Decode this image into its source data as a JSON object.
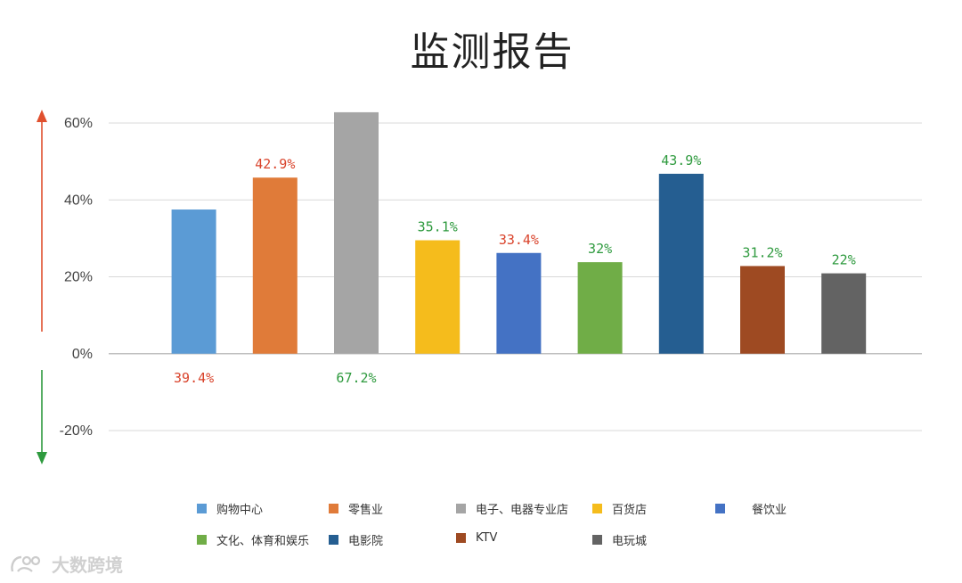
{
  "chart_data": {
    "type": "bar",
    "title": "监测报告",
    "categories": [
      "购物中心",
      "零售业",
      "电子、电器专业店",
      "百货店",
      "餐饮业",
      "文化、体育和娱乐",
      "电影院",
      "KTV",
      "电玩城"
    ],
    "values": [
      37.5,
      45.8,
      62.8,
      29.5,
      26.2,
      23.8,
      46.8,
      22.8,
      20.9
    ],
    "colors": [
      "#5b9bd5",
      "#e07b39",
      "#a5a5a5",
      "#f5bc1c",
      "#4472c4",
      "#70ad47",
      "#255e91",
      "#9e4a22",
      "#636363"
    ],
    "data_labels": [
      "39.4%",
      "42.9%",
      "67.2%",
      "35.1%",
      "33.4%",
      "32%",
      "43.9%",
      "31.2%",
      "22%"
    ],
    "label_positions": [
      "below",
      "above",
      "below",
      "above",
      "above",
      "above",
      "above",
      "above",
      "above"
    ],
    "label_colors": [
      "#d9432b",
      "#d9432b",
      "#2e9a3e",
      "#2e9a3e",
      "#d9432b",
      "#2e9a3e",
      "#2e9a3e",
      "#2e9a3e",
      "#2e9a3e"
    ],
    "y_ticks": [
      60,
      40,
      20,
      0,
      -20
    ],
    "y_tick_labels": [
      "60%",
      "40%",
      "20%",
      "0%",
      "-20%"
    ],
    "ylim": [
      -20,
      60
    ],
    "grid": true,
    "legend_position": "bottom",
    "up_arrow_color": "#e0502e",
    "down_arrow_color": "#2e9a3e"
  },
  "watermark": {
    "text": "大数跨境"
  }
}
